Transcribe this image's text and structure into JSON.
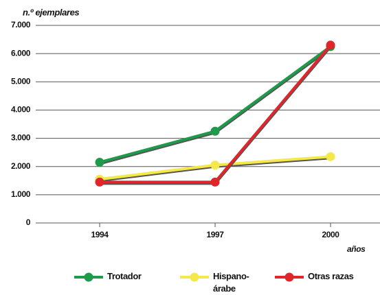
{
  "chart_data": {
    "type": "line",
    "title": "n.º ejemplares",
    "x_label": "años",
    "categories": [
      "1994",
      "1997",
      "2000"
    ],
    "series": [
      {
        "name": "Trotador",
        "color": "#1e9a4a",
        "values": [
          2150,
          3250,
          6250
        ]
      },
      {
        "name": "Hispano-árabe",
        "color": "#f5e84a",
        "values": [
          1550,
          2050,
          2350
        ]
      },
      {
        "name": "Otras razas",
        "color": "#e0262a",
        "values": [
          1450,
          1450,
          6300
        ]
      }
    ],
    "ylim": [
      0,
      7000
    ],
    "yticks": [
      0,
      {
        "value": 1000,
        "label": "1.000"
      },
      {
        "value": 2000,
        "label": "2.000"
      },
      {
        "value": 3000,
        "label": "3.000"
      },
      {
        "value": 4000,
        "label": "4.000"
      },
      {
        "value": 5000,
        "label": "5.000"
      },
      {
        "value": 6000,
        "label": "6.000"
      },
      {
        "value": 7000,
        "label": "7.000"
      }
    ],
    "grid": true
  }
}
